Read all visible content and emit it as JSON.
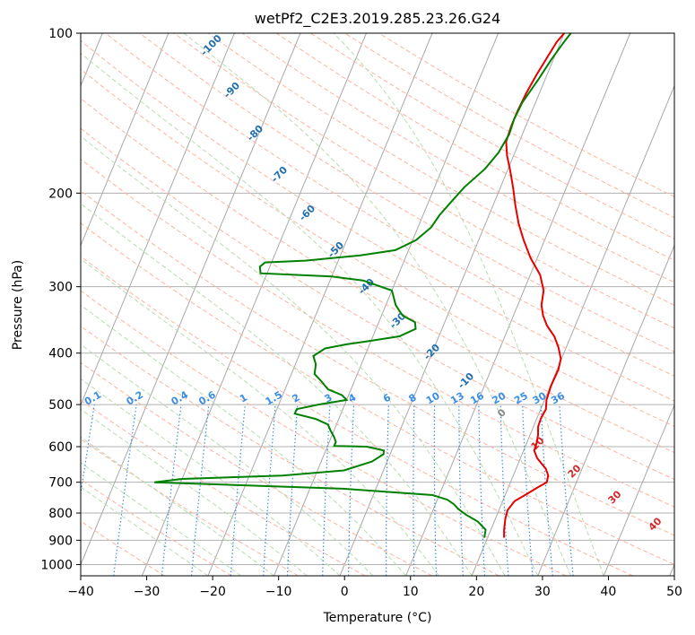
{
  "chart_data": {
    "type": "line",
    "title": "wetPf2_C2E3.2019.285.23.26.G24",
    "xlabel": "Temperature (°C)",
    "ylabel": "Pressure (hPa)",
    "xlim": [
      -40,
      50
    ],
    "ylim": [
      1050,
      100
    ],
    "y_scale": "log",
    "x_ticks": [
      -40,
      -30,
      -20,
      -10,
      0,
      10,
      20,
      30,
      40,
      50
    ],
    "y_ticks": [
      100,
      200,
      300,
      400,
      500,
      600,
      700,
      800,
      900,
      1000
    ],
    "grid": true,
    "series": [
      {
        "color": "#e60000",
        "points": [
          [
            22.5,
            890
          ],
          [
            22.0,
            860
          ],
          [
            21.5,
            820
          ],
          [
            21.3,
            790
          ],
          [
            21.8,
            760
          ],
          [
            23.0,
            740
          ],
          [
            24.5,
            715
          ],
          [
            25.5,
            700
          ],
          [
            25.3,
            680
          ],
          [
            24.5,
            660
          ],
          [
            23.5,
            645
          ],
          [
            22.5,
            630
          ],
          [
            21.6,
            610
          ],
          [
            21.5,
            590
          ],
          [
            21.2,
            570
          ],
          [
            20.7,
            550
          ],
          [
            20.6,
            530
          ],
          [
            20.8,
            510
          ],
          [
            20.3,
            490
          ],
          [
            20.1,
            460
          ],
          [
            20.2,
            430
          ],
          [
            19.9,
            410
          ],
          [
            18.8,
            390
          ],
          [
            17.5,
            372
          ],
          [
            15.7,
            355
          ],
          [
            14.5,
            340
          ],
          [
            13.6,
            325
          ],
          [
            13.0,
            305
          ],
          [
            11.5,
            285
          ],
          [
            9.0,
            265
          ],
          [
            6.8,
            245
          ],
          [
            5.0,
            228
          ],
          [
            3.3,
            210
          ],
          [
            2.0,
            196
          ],
          [
            0.5,
            182
          ],
          [
            -1.0,
            170
          ],
          [
            -2.0,
            160
          ],
          [
            -2.2,
            150
          ],
          [
            -2.2,
            140
          ],
          [
            -2.0,
            130
          ],
          [
            -1.6,
            120
          ],
          [
            -1.0,
            110
          ],
          [
            -0.6,
            104
          ],
          [
            0.0,
            100
          ]
        ]
      },
      {
        "color": "#008000",
        "points": [
          [
            19.5,
            890
          ],
          [
            19.2,
            860
          ],
          [
            17.5,
            830
          ],
          [
            15.2,
            805
          ],
          [
            13.7,
            785
          ],
          [
            12.8,
            770
          ],
          [
            11.5,
            755
          ],
          [
            9.0,
            740
          ],
          [
            -5.0,
            720
          ],
          [
            -34.0,
            700
          ],
          [
            -30.0,
            690
          ],
          [
            -15.0,
            680
          ],
          [
            -6.0,
            665
          ],
          [
            -2.3,
            640
          ],
          [
            -1.0,
            620
          ],
          [
            -1.2,
            610
          ],
          [
            -4.0,
            600
          ],
          [
            -9.0,
            598
          ],
          [
            -9.0,
            588
          ],
          [
            -9.6,
            575
          ],
          [
            -10.5,
            560
          ],
          [
            -11.3,
            545
          ],
          [
            -13.5,
            532
          ],
          [
            -17.0,
            520
          ],
          [
            -17.0,
            510
          ],
          [
            -14.0,
            500
          ],
          [
            -10.0,
            490
          ],
          [
            -11.0,
            480
          ],
          [
            -13.5,
            468
          ],
          [
            -15.0,
            452
          ],
          [
            -16.5,
            438
          ],
          [
            -16.9,
            420
          ],
          [
            -17.8,
            405
          ],
          [
            -16.5,
            392
          ],
          [
            -13.5,
            385
          ],
          [
            -10.5,
            380
          ],
          [
            -6.0,
            372
          ],
          [
            -4.0,
            360
          ],
          [
            -4.5,
            350
          ],
          [
            -6.8,
            340
          ],
          [
            -8.5,
            325
          ],
          [
            -10.0,
            305
          ],
          [
            -15.0,
            292
          ],
          [
            -20.0,
            287
          ],
          [
            -31.0,
            283
          ],
          [
            -31.5,
            275
          ],
          [
            -31.0,
            270
          ],
          [
            -25.0,
            268
          ],
          [
            -17.0,
            262
          ],
          [
            -12.0,
            256
          ],
          [
            -9.5,
            245
          ],
          [
            -8.0,
            232
          ],
          [
            -7.5,
            220
          ],
          [
            -6.5,
            207
          ],
          [
            -5.5,
            195
          ],
          [
            -3.5,
            180
          ],
          [
            -2.5,
            168
          ],
          [
            -2.0,
            155
          ],
          [
            -2.2,
            145
          ],
          [
            -2.0,
            135
          ],
          [
            -1.0,
            122
          ],
          [
            -0.3,
            112
          ],
          [
            0.5,
            104
          ],
          [
            1.0,
            100
          ]
        ]
      }
    ],
    "dry_adiabat_labels": [
      "-100",
      "-90",
      "-80",
      "-70",
      "-60",
      "-50",
      "-40",
      "-30",
      "-20",
      "-10",
      "0",
      "10",
      "20",
      "30",
      "40"
    ],
    "mixing_ratio_labels": [
      "0.1",
      "0.2",
      "0.4",
      "0.6",
      "1",
      "1.5",
      "2",
      "3",
      "4",
      "6",
      "8",
      "10",
      "13",
      "16",
      "20",
      "25",
      "30",
      "36"
    ]
  }
}
